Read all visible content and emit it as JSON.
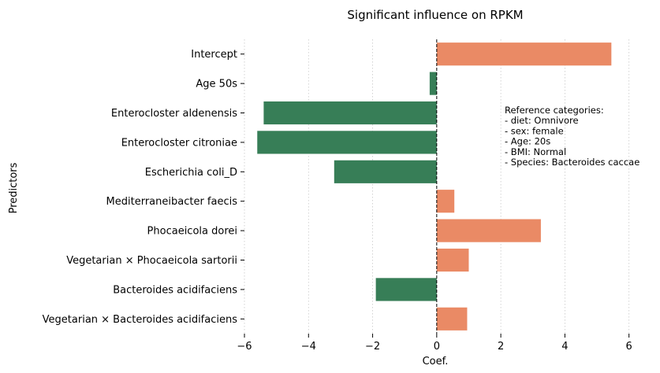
{
  "chart_data": {
    "type": "bar",
    "orientation": "horizontal",
    "title": "Significant influence on RPKM",
    "xlabel": "Coef.",
    "ylabel": "Predictors",
    "xlim": [
      -6,
      6.5
    ],
    "xticks": [
      -6,
      -4,
      -2,
      0,
      2,
      4,
      6
    ],
    "xtick_labels": [
      "−6",
      "−4",
      "−2",
      "0",
      "2",
      "4",
      "6"
    ],
    "grid": "vertical dotted",
    "zero_line": "dashed",
    "categories": [
      "Intercept",
      "Age 50s",
      "Enterocloster aldenensis",
      "Enterocloster citroniae",
      "Escherichia coli_D",
      "Mediterraneibacter faecis",
      "Phocaeicola dorei",
      "Vegetarian × Phocaeicola sartorii",
      "Bacteroides acidifaciens",
      "Vegetarian × Bacteroides acidifaciens"
    ],
    "values": [
      5.45,
      -0.22,
      -5.4,
      -5.6,
      -3.2,
      0.55,
      3.25,
      1.0,
      -1.9,
      0.95
    ],
    "colors": {
      "positive": "#ea8a65",
      "negative": "#377e57"
    },
    "annotation": [
      "Reference categories:",
      "- diet: Omnivore",
      "- sex: female",
      "- Age: 20s",
      "- BMI: Normal",
      "- Species: Bacteroides caccae"
    ]
  }
}
